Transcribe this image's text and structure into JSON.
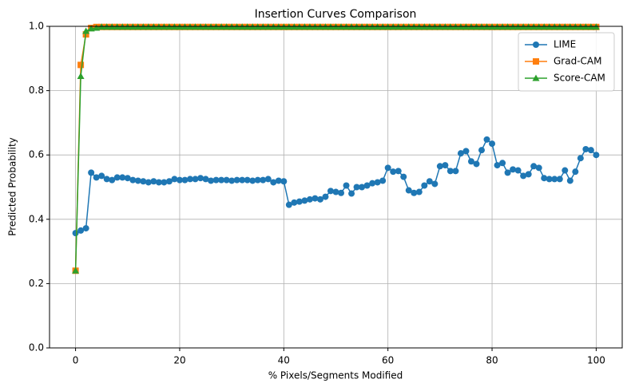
{
  "chart_data": {
    "type": "line",
    "title": "Insertion Curves Comparison",
    "x_label": "% Pixels/Segments Modified",
    "y_label": "Predicted Probability",
    "x": [
      0,
      1,
      2,
      3,
      4,
      5,
      6,
      7,
      8,
      9,
      10,
      11,
      12,
      13,
      14,
      15,
      16,
      17,
      18,
      19,
      20,
      21,
      22,
      23,
      24,
      25,
      26,
      27,
      28,
      29,
      30,
      31,
      32,
      33,
      34,
      35,
      36,
      37,
      38,
      39,
      40,
      41,
      42,
      43,
      44,
      45,
      46,
      47,
      48,
      49,
      50,
      51,
      52,
      53,
      54,
      55,
      56,
      57,
      58,
      59,
      60,
      61,
      62,
      63,
      64,
      65,
      66,
      67,
      68,
      69,
      70,
      71,
      72,
      73,
      74,
      75,
      76,
      77,
      78,
      79,
      80,
      81,
      82,
      83,
      84,
      85,
      86,
      87,
      88,
      89,
      90,
      91,
      92,
      93,
      94,
      95,
      96,
      97,
      98,
      99,
      100
    ],
    "series": [
      {
        "name": "LIME",
        "color": "#1f77b4",
        "marker": "circle",
        "values": [
          0.357,
          0.365,
          0.372,
          0.545,
          0.53,
          0.535,
          0.525,
          0.522,
          0.53,
          0.53,
          0.528,
          0.522,
          0.52,
          0.518,
          0.515,
          0.518,
          0.515,
          0.515,
          0.518,
          0.525,
          0.522,
          0.522,
          0.525,
          0.525,
          0.528,
          0.525,
          0.52,
          0.522,
          0.522,
          0.522,
          0.52,
          0.522,
          0.522,
          0.522,
          0.52,
          0.522,
          0.522,
          0.525,
          0.515,
          0.52,
          0.518,
          0.445,
          0.452,
          0.455,
          0.458,
          0.462,
          0.465,
          0.462,
          0.47,
          0.488,
          0.485,
          0.482,
          0.505,
          0.48,
          0.5,
          0.5,
          0.505,
          0.512,
          0.515,
          0.52,
          0.56,
          0.548,
          0.55,
          0.532,
          0.49,
          0.482,
          0.485,
          0.505,
          0.518,
          0.51,
          0.565,
          0.568,
          0.55,
          0.55,
          0.605,
          0.612,
          0.58,
          0.572,
          0.615,
          0.648,
          0.635,
          0.568,
          0.575,
          0.545,
          0.555,
          0.552,
          0.535,
          0.54,
          0.565,
          0.56,
          0.528,
          0.525,
          0.525,
          0.525,
          0.552,
          0.52,
          0.548,
          0.59,
          0.618,
          0.615,
          0.6
        ]
      },
      {
        "name": "Grad-CAM",
        "color": "#ff7f0e",
        "marker": "square",
        "values": [
          0.24,
          0.88,
          0.975,
          0.995,
          0.998,
          0.998,
          0.998,
          0.998,
          0.998,
          0.998,
          0.998,
          0.998,
          0.998,
          0.998,
          0.998,
          0.998,
          0.998,
          0.998,
          0.998,
          0.998,
          0.998,
          0.998,
          0.998,
          0.998,
          0.998,
          0.998,
          0.998,
          0.998,
          0.998,
          0.998,
          0.998,
          0.998,
          0.998,
          0.998,
          0.998,
          0.998,
          0.998,
          0.998,
          0.998,
          0.998,
          0.998,
          0.998,
          0.998,
          0.998,
          0.998,
          0.998,
          0.998,
          0.998,
          0.998,
          0.998,
          0.998,
          0.998,
          0.998,
          0.998,
          0.998,
          0.998,
          0.998,
          0.998,
          0.998,
          0.998,
          0.998,
          0.998,
          0.998,
          0.998,
          0.998,
          0.998,
          0.998,
          0.998,
          0.998,
          0.998,
          0.998,
          0.998,
          0.998,
          0.998,
          0.998,
          0.998,
          0.998,
          0.998,
          0.998,
          0.998,
          0.998,
          0.998,
          0.998,
          0.998,
          0.998,
          0.998,
          0.998,
          0.998,
          0.998,
          0.998,
          0.998,
          0.998,
          0.998,
          0.998,
          0.998,
          0.998,
          0.998,
          0.998,
          0.998,
          0.998,
          0.998
        ]
      },
      {
        "name": "Score-CAM",
        "color": "#2ca02c",
        "marker": "triangle",
        "values": [
          0.24,
          0.845,
          0.985,
          0.993,
          0.995,
          0.998,
          0.998,
          0.998,
          0.998,
          0.998,
          0.998,
          0.998,
          0.998,
          0.998,
          0.998,
          0.998,
          0.998,
          0.998,
          0.998,
          0.998,
          0.998,
          0.998,
          0.998,
          0.998,
          0.998,
          0.998,
          0.998,
          0.998,
          0.998,
          0.998,
          0.998,
          0.998,
          0.998,
          0.998,
          0.998,
          0.998,
          0.998,
          0.998,
          0.998,
          0.998,
          0.998,
          0.998,
          0.998,
          0.998,
          0.998,
          0.998,
          0.998,
          0.998,
          0.998,
          0.998,
          0.998,
          0.998,
          0.998,
          0.998,
          0.998,
          0.998,
          0.998,
          0.998,
          0.998,
          0.998,
          0.998,
          0.998,
          0.998,
          0.998,
          0.998,
          0.998,
          0.998,
          0.998,
          0.998,
          0.998,
          0.998,
          0.998,
          0.998,
          0.998,
          0.998,
          0.998,
          0.998,
          0.998,
          0.998,
          0.998,
          0.998,
          0.998,
          0.998,
          0.998,
          0.998,
          0.998,
          0.998,
          0.998,
          0.998,
          0.998,
          0.998,
          0.998,
          0.998,
          0.998,
          0.998,
          0.998,
          0.998,
          0.998,
          0.998,
          0.998,
          0.998
        ]
      }
    ],
    "xlim": [
      -5,
      105
    ],
    "xticks": [
      0,
      20,
      40,
      60,
      80,
      100
    ],
    "ylim": [
      0,
      1
    ],
    "yticks": [
      {
        "value": 0,
        "label": "0.0"
      },
      {
        "value": 0.2,
        "label": "0.2"
      },
      {
        "value": 0.4,
        "label": "0.4"
      },
      {
        "value": 0.6,
        "label": "0.6"
      },
      {
        "value": 0.8,
        "label": "0.8"
      },
      {
        "value": 1,
        "label": "1.0"
      }
    ],
    "grid": true,
    "legend": "upper right"
  }
}
